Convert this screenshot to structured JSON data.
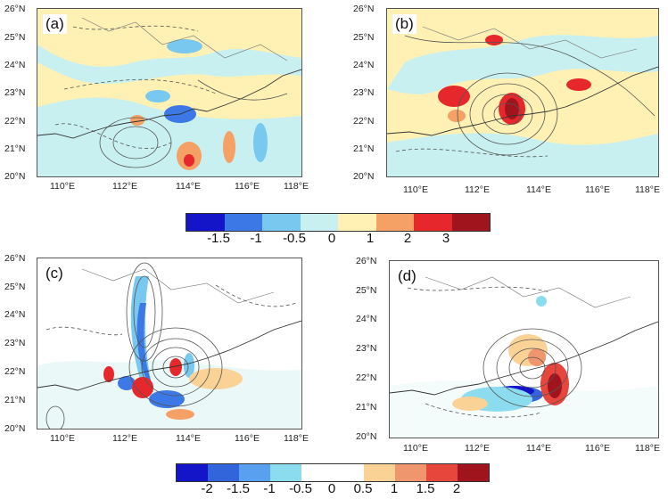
{
  "panels": [
    {
      "label": "(a)",
      "lat_ticks": [
        "26°N",
        "25°N",
        "24°N",
        "23°N",
        "22°N",
        "21°N",
        "20°N"
      ],
      "lon_ticks": [
        "110°E",
        "112°E",
        "114°E",
        "116°E",
        "118°E"
      ]
    },
    {
      "label": "(b)",
      "lat_ticks": [
        "26°N",
        "25°N",
        "24°N",
        "23°N",
        "22°N",
        "21°N",
        "20°N"
      ],
      "lon_ticks": [
        "110°E",
        "112°E",
        "114°E",
        "116°E",
        "118°E"
      ]
    },
    {
      "label": "(c)",
      "lat_ticks": [
        "26°N",
        "25°N",
        "24°N",
        "23°N",
        "22°N",
        "21°N",
        "20°N"
      ],
      "lon_ticks": [
        "110°E",
        "112°E",
        "114°E",
        "116°E",
        "118°E"
      ]
    },
    {
      "label": "(d)",
      "lat_ticks": [
        "26°N",
        "25°N",
        "24°N",
        "23°N",
        "22°N",
        "21°N",
        "20°N"
      ],
      "lon_ticks": [
        "110°E",
        "112°E",
        "114°E",
        "116°E",
        "118°E"
      ]
    }
  ],
  "colorbar_top": {
    "colors": [
      "#1414c8",
      "#3c78e6",
      "#78c8f0",
      "#c8f0f0",
      "#fff0b4",
      "#f5a064",
      "#e6282d",
      "#a0141e"
    ],
    "labels": [
      "-1.5",
      "-1",
      "-0.5",
      "0",
      "1",
      "2",
      "3"
    ]
  },
  "colorbar_bottom": {
    "colors": [
      "#1414c8",
      "#3264dc",
      "#5aa0f0",
      "#8cdcf0",
      "#ffffff",
      "#ffffff",
      "#fad296",
      "#f0966e",
      "#e6463c",
      "#a0141e"
    ],
    "labels": [
      "-2",
      "-1.5",
      "-1",
      "-0.5",
      "0",
      "0.5",
      "1",
      "1.5",
      "2"
    ]
  },
  "colors": {
    "ocean": "#c8f0f0",
    "land_tan": "#fff0b4",
    "white": "#ffffff"
  }
}
